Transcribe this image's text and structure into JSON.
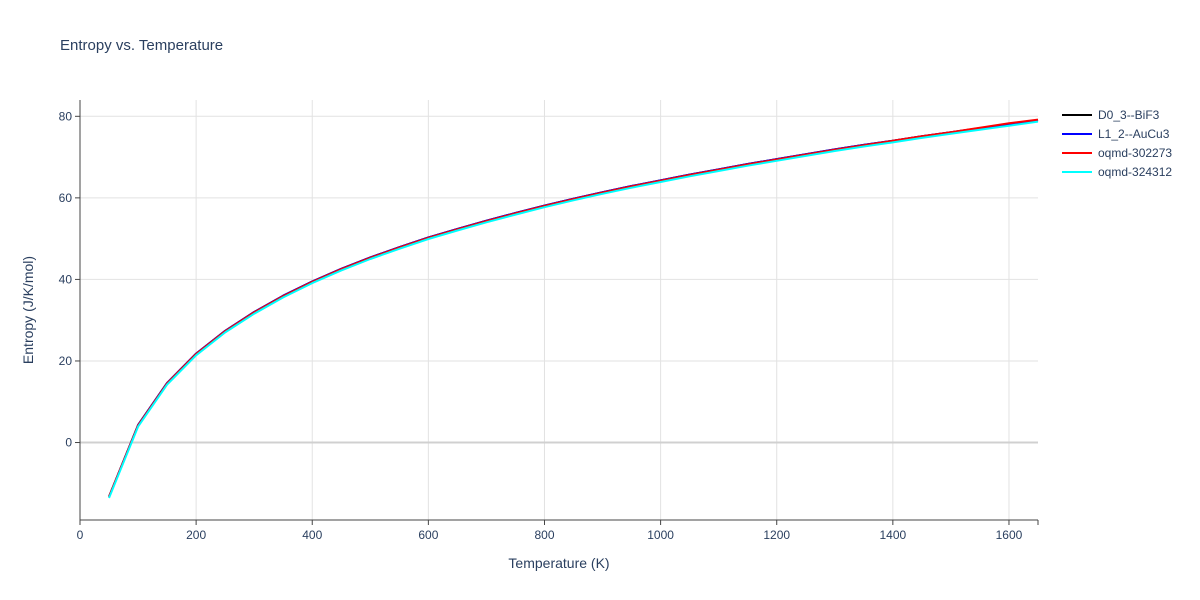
{
  "chart_data": {
    "type": "line",
    "title": "Entropy vs. Temperature",
    "xlabel": "Temperature (K)",
    "ylabel": "Entropy (J/K/mol)",
    "xlim": [
      0,
      1650
    ],
    "ylim": [
      -19,
      84
    ],
    "xticks": [
      0,
      200,
      400,
      600,
      800,
      1000,
      1200,
      1400,
      1600
    ],
    "yticks": [
      0,
      20,
      40,
      60,
      80
    ],
    "grid": true,
    "legend_position": "right",
    "x": [
      50,
      100,
      150,
      200,
      250,
      300,
      350,
      400,
      450,
      500,
      550,
      600,
      650,
      700,
      750,
      800,
      850,
      900,
      950,
      1000,
      1050,
      1100,
      1150,
      1200,
      1250,
      1300,
      1350,
      1400,
      1450,
      1500,
      1550,
      1600,
      1650
    ],
    "series": [
      {
        "name": "D0_3--BiF3",
        "color": "#000000",
        "values": [
          -13.3,
          4.3,
          14.6,
          21.8,
          27.4,
          32.0,
          36.0,
          39.5,
          42.6,
          45.4,
          47.9,
          50.3,
          52.4,
          54.4,
          56.3,
          58.1,
          59.8,
          61.4,
          62.9,
          64.3,
          65.7,
          67.0,
          68.3,
          69.5,
          70.7,
          71.9,
          73.0,
          74.0,
          75.1,
          76.1,
          77.1,
          78.0,
          79.0
        ]
      },
      {
        "name": "L1_2--AuCu3",
        "color": "#0000ff",
        "values": [
          -13.3,
          4.3,
          14.6,
          21.8,
          27.4,
          32.0,
          36.0,
          39.5,
          42.6,
          45.4,
          47.9,
          50.3,
          52.4,
          54.4,
          56.3,
          58.1,
          59.8,
          61.4,
          62.9,
          64.3,
          65.7,
          67.0,
          68.3,
          69.5,
          70.7,
          71.9,
          73.0,
          74.0,
          75.1,
          76.1,
          77.1,
          78.1,
          79.1
        ]
      },
      {
        "name": "oqmd-302273",
        "color": "#ff0000",
        "values": [
          -13.3,
          4.2,
          14.5,
          21.7,
          27.3,
          31.9,
          35.9,
          39.4,
          42.5,
          45.3,
          47.8,
          50.2,
          52.3,
          54.3,
          56.2,
          58.0,
          59.7,
          61.3,
          62.8,
          64.2,
          65.6,
          66.9,
          68.2,
          69.4,
          70.6,
          71.8,
          72.9,
          74.0,
          75.1,
          76.1,
          77.2,
          78.3,
          79.2
        ]
      },
      {
        "name": "oqmd-324312",
        "color": "#00ffff",
        "values": [
          -13.6,
          3.9,
          14.2,
          21.4,
          27.0,
          31.6,
          35.6,
          39.1,
          42.2,
          45.0,
          47.5,
          49.9,
          52.0,
          54.0,
          55.9,
          57.7,
          59.4,
          61.0,
          62.5,
          63.9,
          65.3,
          66.6,
          67.9,
          69.1,
          70.3,
          71.5,
          72.6,
          73.6,
          74.7,
          75.7,
          76.7,
          77.7,
          78.7
        ]
      }
    ]
  }
}
